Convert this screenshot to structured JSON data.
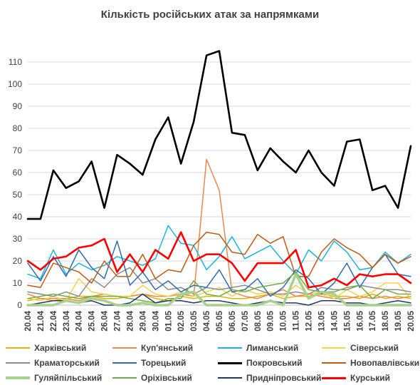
{
  "chart_data": {
    "type": "line",
    "title": "Кількість російських атак за напрямками",
    "xlabel": "",
    "ylabel": "",
    "ylim": [
      0,
      120
    ],
    "yticks": [
      0,
      10,
      20,
      30,
      40,
      50,
      60,
      70,
      80,
      90,
      100,
      110
    ],
    "grid": true,
    "legend_position": "bottom",
    "categories": [
      "20.04",
      "21.04",
      "22.04",
      "23.04",
      "24.04",
      "25.04",
      "26.04",
      "27.04",
      "28.04",
      "29.04",
      "30.04",
      "01.05",
      "02.05",
      "03.05",
      "04.05",
      "05.05",
      "06.05",
      "07.05",
      "08.05",
      "09.05",
      "10.05",
      "11.05",
      "12.05",
      "13.05",
      "14.05",
      "15.05",
      "16.05",
      "17.05",
      "18.05",
      "19.05",
      "20.05"
    ],
    "series": [
      {
        "name": "Харківський",
        "color": "#e3b20a",
        "width": 1.5,
        "values": [
          2,
          3,
          2,
          3,
          4,
          4,
          3,
          3,
          4,
          5,
          3,
          2,
          4,
          3,
          4,
          4,
          3,
          3,
          4,
          5,
          3,
          4,
          4,
          5,
          4,
          4,
          3,
          5,
          3,
          4,
          3
        ]
      },
      {
        "name": "Куп'янський",
        "color": "#e7894b",
        "width": 1.5,
        "values": [
          5,
          3,
          3,
          3,
          2,
          4,
          5,
          4,
          4,
          5,
          4,
          4,
          5,
          4,
          66,
          52,
          6,
          4,
          3,
          5,
          7,
          4,
          5,
          4,
          3,
          3,
          4,
          3,
          4,
          3,
          4
        ]
      },
      {
        "name": "Лиманський",
        "color": "#1ab3e3",
        "width": 1.5,
        "values": [
          14,
          12,
          25,
          14,
          19,
          16,
          18,
          22,
          20,
          18,
          21,
          36,
          28,
          27,
          16,
          22,
          31,
          21,
          24,
          27,
          20,
          14,
          25,
          20,
          29,
          24,
          16,
          17,
          24,
          19,
          23
        ]
      },
      {
        "name": "Сіверський",
        "color": "#f3d34e",
        "width": 1.5,
        "values": [
          3,
          2,
          4,
          2,
          12,
          6,
          5,
          4,
          4,
          9,
          5,
          4,
          6,
          4,
          6,
          8,
          4,
          7,
          5,
          6,
          4,
          9,
          5,
          6,
          3,
          7,
          4,
          6,
          10,
          10,
          3
        ]
      },
      {
        "name": "Краматорський",
        "color": "#8c8c8c",
        "width": 1.5,
        "values": [
          6,
          5,
          4,
          6,
          4,
          12,
          8,
          14,
          17,
          10,
          12,
          7,
          8,
          5,
          8,
          7,
          8,
          9,
          7,
          5,
          5,
          6,
          5,
          8,
          7,
          7,
          9,
          8,
          7,
          7,
          6
        ]
      },
      {
        "name": "Торецький",
        "color": "#2e6db2",
        "width": 1.5,
        "values": [
          19,
          11,
          22,
          13,
          25,
          17,
          12,
          29,
          9,
          15,
          7,
          11,
          6,
          9,
          8,
          16,
          6,
          7,
          12,
          4,
          8,
          16,
          12,
          5,
          10,
          19,
          8,
          17,
          23,
          14,
          13
        ]
      },
      {
        "name": "Покровський",
        "color": "#000000",
        "width": 2.6,
        "values": [
          39,
          39,
          61,
          53,
          56,
          65,
          44,
          68,
          64,
          59,
          75,
          85,
          64,
          83,
          113,
          115,
          78,
          77,
          61,
          71,
          65,
          60,
          70,
          60,
          54,
          74,
          75,
          52,
          54,
          44,
          72
        ]
      },
      {
        "name": "Новопавлівський",
        "color": "#c55a11",
        "width": 1.5,
        "values": [
          9,
          8,
          19,
          17,
          15,
          10,
          20,
          13,
          13,
          23,
          12,
          16,
          15,
          27,
          33,
          32,
          24,
          23,
          32,
          28,
          31,
          13,
          13,
          24,
          30,
          26,
          23,
          17,
          23,
          19,
          22
        ]
      },
      {
        "name": "Гуляйпільський",
        "color": "#a9d18e",
        "width": 3.5,
        "values": [
          0,
          0,
          0,
          2,
          1,
          3,
          2,
          0,
          0,
          1,
          0,
          0,
          5,
          6,
          0,
          0,
          0,
          0,
          0,
          2,
          0,
          14,
          3,
          6,
          5,
          0,
          0,
          0,
          0,
          0,
          0
        ]
      },
      {
        "name": "Оріхівський",
        "color": "#70ad47",
        "width": 1.5,
        "values": [
          3,
          4,
          5,
          4,
          3,
          4,
          4,
          4,
          3,
          2,
          1,
          3,
          3,
          11,
          5,
          4,
          7,
          6,
          8,
          9,
          10,
          15,
          7,
          6,
          6,
          8,
          9,
          3,
          7,
          5,
          5
        ]
      },
      {
        "name": "Придніпровський",
        "color": "#203864",
        "width": 1.5,
        "values": [
          0,
          1,
          2,
          2,
          1,
          2,
          0,
          0,
          1,
          5,
          1,
          2,
          2,
          1,
          2,
          2,
          1,
          0,
          1,
          2,
          1,
          1,
          0,
          2,
          2,
          1,
          1,
          0,
          1,
          2,
          1
        ]
      },
      {
        "name": "Курський",
        "color": "#ff0000",
        "width": 2.6,
        "values": [
          20,
          16,
          21,
          22,
          26,
          27,
          30,
          15,
          23,
          15,
          25,
          21,
          33,
          20,
          23,
          23,
          19,
          11,
          19,
          19,
          19,
          25,
          8,
          9,
          12,
          9,
          14,
          13,
          14,
          14,
          10
        ]
      }
    ]
  }
}
